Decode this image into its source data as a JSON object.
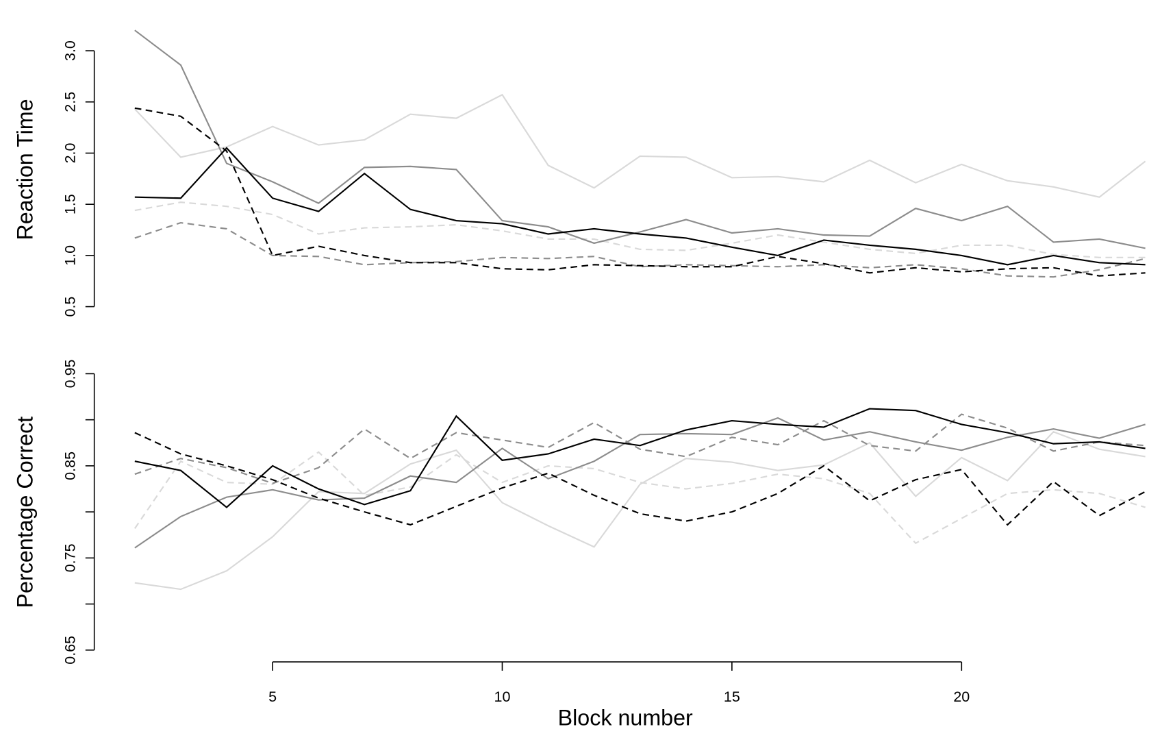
{
  "chart_data": [
    {
      "type": "line",
      "ylabel": "Reaction Time",
      "x": [
        2,
        3,
        4,
        5,
        6,
        7,
        8,
        9,
        10,
        11,
        12,
        13,
        14,
        15,
        16,
        17,
        18,
        19,
        20,
        21,
        22,
        23,
        24
      ],
      "xlim": [
        2,
        24
      ],
      "ylim": [
        0.5,
        3.2
      ],
      "yticks": [
        0.5,
        {
          "value": 1.0,
          "label": "1.0"
        },
        1.5,
        {
          "value": 2.0,
          "label": "2.0"
        },
        2.5,
        {
          "value": 3.0,
          "label": "3.0"
        }
      ],
      "series": [
        {
          "color": "#000000",
          "linestyle": "solid",
          "values": [
            1.57,
            1.56,
            2.05,
            1.56,
            1.43,
            1.8,
            1.45,
            1.34,
            1.31,
            1.21,
            1.26,
            1.21,
            1.17,
            1.08,
            1.0,
            1.15,
            1.1,
            1.06,
            1.0,
            0.91,
            1.0,
            0.93,
            0.91
          ]
        },
        {
          "color": "#000000",
          "linestyle": "dashed",
          "values": [
            2.44,
            2.36,
            2.02,
            1.0,
            1.09,
            1.0,
            0.93,
            0.93,
            0.87,
            0.86,
            0.91,
            0.9,
            0.89,
            0.89,
            0.99,
            0.92,
            0.83,
            0.88,
            0.84,
            0.87,
            0.88,
            0.8,
            0.83
          ]
        },
        {
          "color": "#8c8c8c",
          "linestyle": "solid",
          "values": [
            3.2,
            2.86,
            1.9,
            1.72,
            1.51,
            1.86,
            1.87,
            1.84,
            1.34,
            1.28,
            1.12,
            1.23,
            1.35,
            1.22,
            1.26,
            1.2,
            1.19,
            1.46,
            1.34,
            1.48,
            1.13,
            1.16,
            1.07
          ]
        },
        {
          "color": "#8c8c8c",
          "linestyle": "dashed",
          "values": [
            1.17,
            1.32,
            1.26,
            1.0,
            0.99,
            0.91,
            0.93,
            0.94,
            0.98,
            0.97,
            0.99,
            0.89,
            0.91,
            0.9,
            0.89,
            0.91,
            0.88,
            0.91,
            0.87,
            0.8,
            0.79,
            0.86,
            0.97
          ]
        },
        {
          "color": "#d9d9d9",
          "linestyle": "solid",
          "values": [
            2.43,
            1.96,
            2.06,
            2.26,
            2.08,
            2.13,
            2.38,
            2.34,
            2.57,
            1.88,
            1.66,
            1.97,
            1.96,
            1.76,
            1.77,
            1.72,
            1.93,
            1.71,
            1.89,
            1.73,
            1.67,
            1.57,
            1.92
          ]
        },
        {
          "color": "#d9d9d9",
          "linestyle": "dashed",
          "values": [
            1.44,
            1.52,
            1.48,
            1.4,
            1.21,
            1.27,
            1.28,
            1.3,
            1.24,
            1.16,
            1.16,
            1.06,
            1.05,
            1.12,
            1.2,
            1.13,
            1.06,
            1.02,
            1.1,
            1.1,
            1.01,
            0.98,
            0.98
          ]
        }
      ]
    },
    {
      "type": "line",
      "ylabel": "Percentage Correct",
      "xlabel": "Block number",
      "x": [
        2,
        3,
        4,
        5,
        6,
        7,
        8,
        9,
        10,
        11,
        12,
        13,
        14,
        15,
        16,
        17,
        18,
        19,
        20,
        21,
        22,
        23,
        24
      ],
      "xlim": [
        2,
        24
      ],
      "xticks": [
        5,
        10,
        15,
        20
      ],
      "ylim": [
        0.65,
        0.95
      ],
      "yticks": [
        0.65,
        0.75,
        0.85,
        0.95
      ],
      "minor_yticks": [
        0.7,
        0.8,
        0.9
      ],
      "series": [
        {
          "color": "#000000",
          "linestyle": "solid",
          "values": [
            0.855,
            0.845,
            0.805,
            0.85,
            0.825,
            0.808,
            0.823,
            0.904,
            0.856,
            0.863,
            0.879,
            0.872,
            0.889,
            0.899,
            0.895,
            0.892,
            0.912,
            0.91,
            0.895,
            0.886,
            0.874,
            0.876,
            0.869
          ]
        },
        {
          "color": "#000000",
          "linestyle": "dashed",
          "values": [
            0.886,
            0.863,
            0.85,
            0.835,
            0.815,
            0.8,
            0.786,
            0.806,
            0.826,
            0.842,
            0.818,
            0.798,
            0.79,
            0.8,
            0.82,
            0.85,
            0.812,
            0.835,
            0.846,
            0.786,
            0.833,
            0.796,
            0.822
          ]
        },
        {
          "color": "#8c8c8c",
          "linestyle": "solid",
          "values": [
            0.761,
            0.795,
            0.816,
            0.824,
            0.813,
            0.815,
            0.839,
            0.832,
            0.869,
            0.836,
            0.855,
            0.884,
            0.885,
            0.884,
            0.902,
            0.878,
            0.887,
            0.876,
            0.867,
            0.881,
            0.89,
            0.88,
            0.895
          ]
        },
        {
          "color": "#8c8c8c",
          "linestyle": "dashed",
          "values": [
            0.841,
            0.858,
            0.848,
            0.831,
            0.848,
            0.89,
            0.858,
            0.886,
            0.878,
            0.87,
            0.897,
            0.868,
            0.86,
            0.881,
            0.873,
            0.899,
            0.872,
            0.866,
            0.906,
            0.891,
            0.866,
            0.876,
            0.872
          ]
        },
        {
          "color": "#d9d9d9",
          "linestyle": "solid",
          "values": [
            0.723,
            0.716,
            0.736,
            0.773,
            0.822,
            0.82,
            0.852,
            0.867,
            0.81,
            0.785,
            0.762,
            0.83,
            0.858,
            0.854,
            0.845,
            0.851,
            0.875,
            0.817,
            0.859,
            0.834,
            0.887,
            0.868,
            0.86
          ]
        },
        {
          "color": "#d9d9d9",
          "linestyle": "dashed",
          "values": [
            0.782,
            0.855,
            0.832,
            0.83,
            0.865,
            0.818,
            0.827,
            0.862,
            0.832,
            0.85,
            0.847,
            0.832,
            0.825,
            0.831,
            0.841,
            0.836,
            0.82,
            0.766,
            0.793,
            0.82,
            0.824,
            0.82,
            0.805
          ]
        }
      ]
    }
  ]
}
